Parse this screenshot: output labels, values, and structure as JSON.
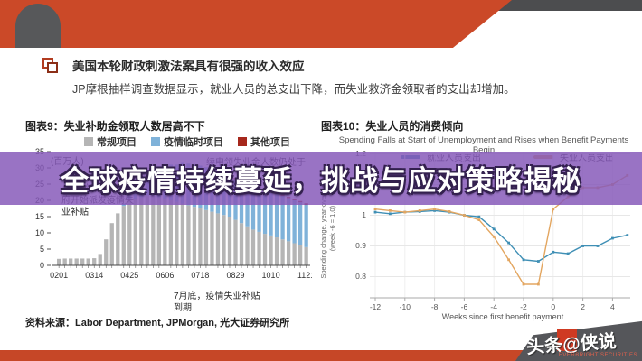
{
  "header": {
    "title": "美国本轮财政刺激法案具有很强的收入效应",
    "body": "JP摩根抽样调查数据显示，就业人员的总支出下降，而失业救济金领取者的支出却增加。"
  },
  "banner": {
    "headline": "全球疫情持续蔓延，挑战与应对策略揭秘"
  },
  "watermark": {
    "main": "头条@侠说",
    "sub": "EVERBRIGHT SECURITIES"
  },
  "colors": {
    "accent_orange": "#cb4928",
    "dark_gray": "#57585a",
    "banner_purple": "#8558b9",
    "bottom_bar": "#c64727"
  },
  "chart_data": [
    {
      "type": "bar",
      "title": "图表9：失业补助金领取人数居高不下",
      "unit_label": "(百万人)",
      "ylim": [
        0,
        35
      ],
      "yticks": [
        0,
        5,
        10,
        15,
        20,
        25,
        30,
        35
      ],
      "x_tick_labels": [
        "0201",
        "0314",
        "0425",
        "0606",
        "0718",
        "0829",
        "1010",
        "1121"
      ],
      "x_tick_indices": [
        0,
        6,
        12,
        18,
        24,
        30,
        36,
        42
      ],
      "series": [
        {
          "name": "常规项目",
          "color": "#b5b5b5",
          "values": [
            2,
            2.1,
            2.1,
            2.1,
            2.1,
            2.1,
            2.2,
            3.5,
            8,
            13,
            16,
            18.3,
            20.5,
            20.5,
            21,
            21.5,
            21.5,
            21,
            20.5,
            20,
            19.5,
            19,
            18.5,
            18,
            17.5,
            17,
            16.5,
            16,
            15.5,
            15,
            14,
            13,
            12,
            11,
            10.3,
            9.7,
            9.2,
            8.6,
            8,
            7.4,
            6.8,
            6.2,
            5.6
          ]
        },
        {
          "name": "疫情临时项目",
          "color": "#7fb2d9",
          "values": [
            0,
            0,
            0,
            0,
            0,
            0,
            0,
            0,
            0,
            0,
            0,
            0.7,
            4.5,
            6,
            6.5,
            7,
            8.5,
            9.5,
            10,
            11,
            11.5,
            12.5,
            12.8,
            13,
            13.2,
            13.2,
            13,
            13,
            12.8,
            12.5,
            12.5,
            13,
            13.3,
            13.6,
            13.7,
            13.6,
            13.5,
            13.5,
            13.4,
            13.3,
            13.2,
            13.2,
            13
          ]
        },
        {
          "name": "其他项目",
          "color": "#a6281c",
          "values": [
            0,
            0,
            0,
            0,
            0,
            0,
            0,
            0,
            0,
            0,
            0,
            0,
            0,
            0,
            0,
            0,
            0,
            0,
            0,
            0,
            0,
            0,
            0,
            0,
            0,
            0,
            0,
            0,
            0,
            0.3,
            0.4,
            0.4,
            0.4,
            0.4,
            0.4,
            0.4,
            0.4,
            0.4,
            0.4,
            0.4,
            0.4,
            0.4,
            0.5
          ]
        }
      ],
      "annotations": {
        "april": "4月中旬，美国政府开始派发疫情失业补贴",
        "claims": "续申领失业金人数仍处于高位",
        "july": "7月底，疫情失业补贴到期"
      },
      "source": "资料来源：Labor Department, JPMorgan, 光大证券研究所"
    },
    {
      "type": "line",
      "title": "图表10：失业人员的消费倾向",
      "subtitle": "Spending Falls at Start of Unemployment and Rises when Benefit Payments Begin",
      "xlabel": "Weeks since first benefit payment",
      "ylabel": "Spending change, year-over-year (week -6 = 1.0)",
      "x": [
        -12,
        -11,
        -10,
        -9,
        -8,
        -7,
        -6,
        -5,
        -4,
        -3,
        -2,
        -1,
        0,
        1,
        2,
        3,
        4,
        5
      ],
      "xticks": [
        -12,
        -10,
        -8,
        -6,
        -4,
        -2,
        0,
        2,
        4
      ],
      "ylim": [
        0.73,
        1.25
      ],
      "yticks": [
        0.8,
        0.9,
        1,
        1.1,
        1.2
      ],
      "series": [
        {
          "name": "就业人员支出",
          "color": "#3f8fb5",
          "values": [
            1.01,
            1.005,
            1.01,
            1.012,
            1.015,
            1.01,
            1.0,
            0.995,
            0.955,
            0.91,
            0.855,
            0.85,
            0.88,
            0.875,
            0.9,
            0.9,
            0.925,
            0.935
          ]
        },
        {
          "name": "失业人员支出",
          "color": "#e3a660",
          "values": [
            1.02,
            1.015,
            1.01,
            1.015,
            1.02,
            1.012,
            1.0,
            0.985,
            0.93,
            0.855,
            0.775,
            0.775,
            1.02,
            1.06,
            1.09,
            1.09,
            1.1,
            1.13
          ]
        }
      ]
    }
  ]
}
